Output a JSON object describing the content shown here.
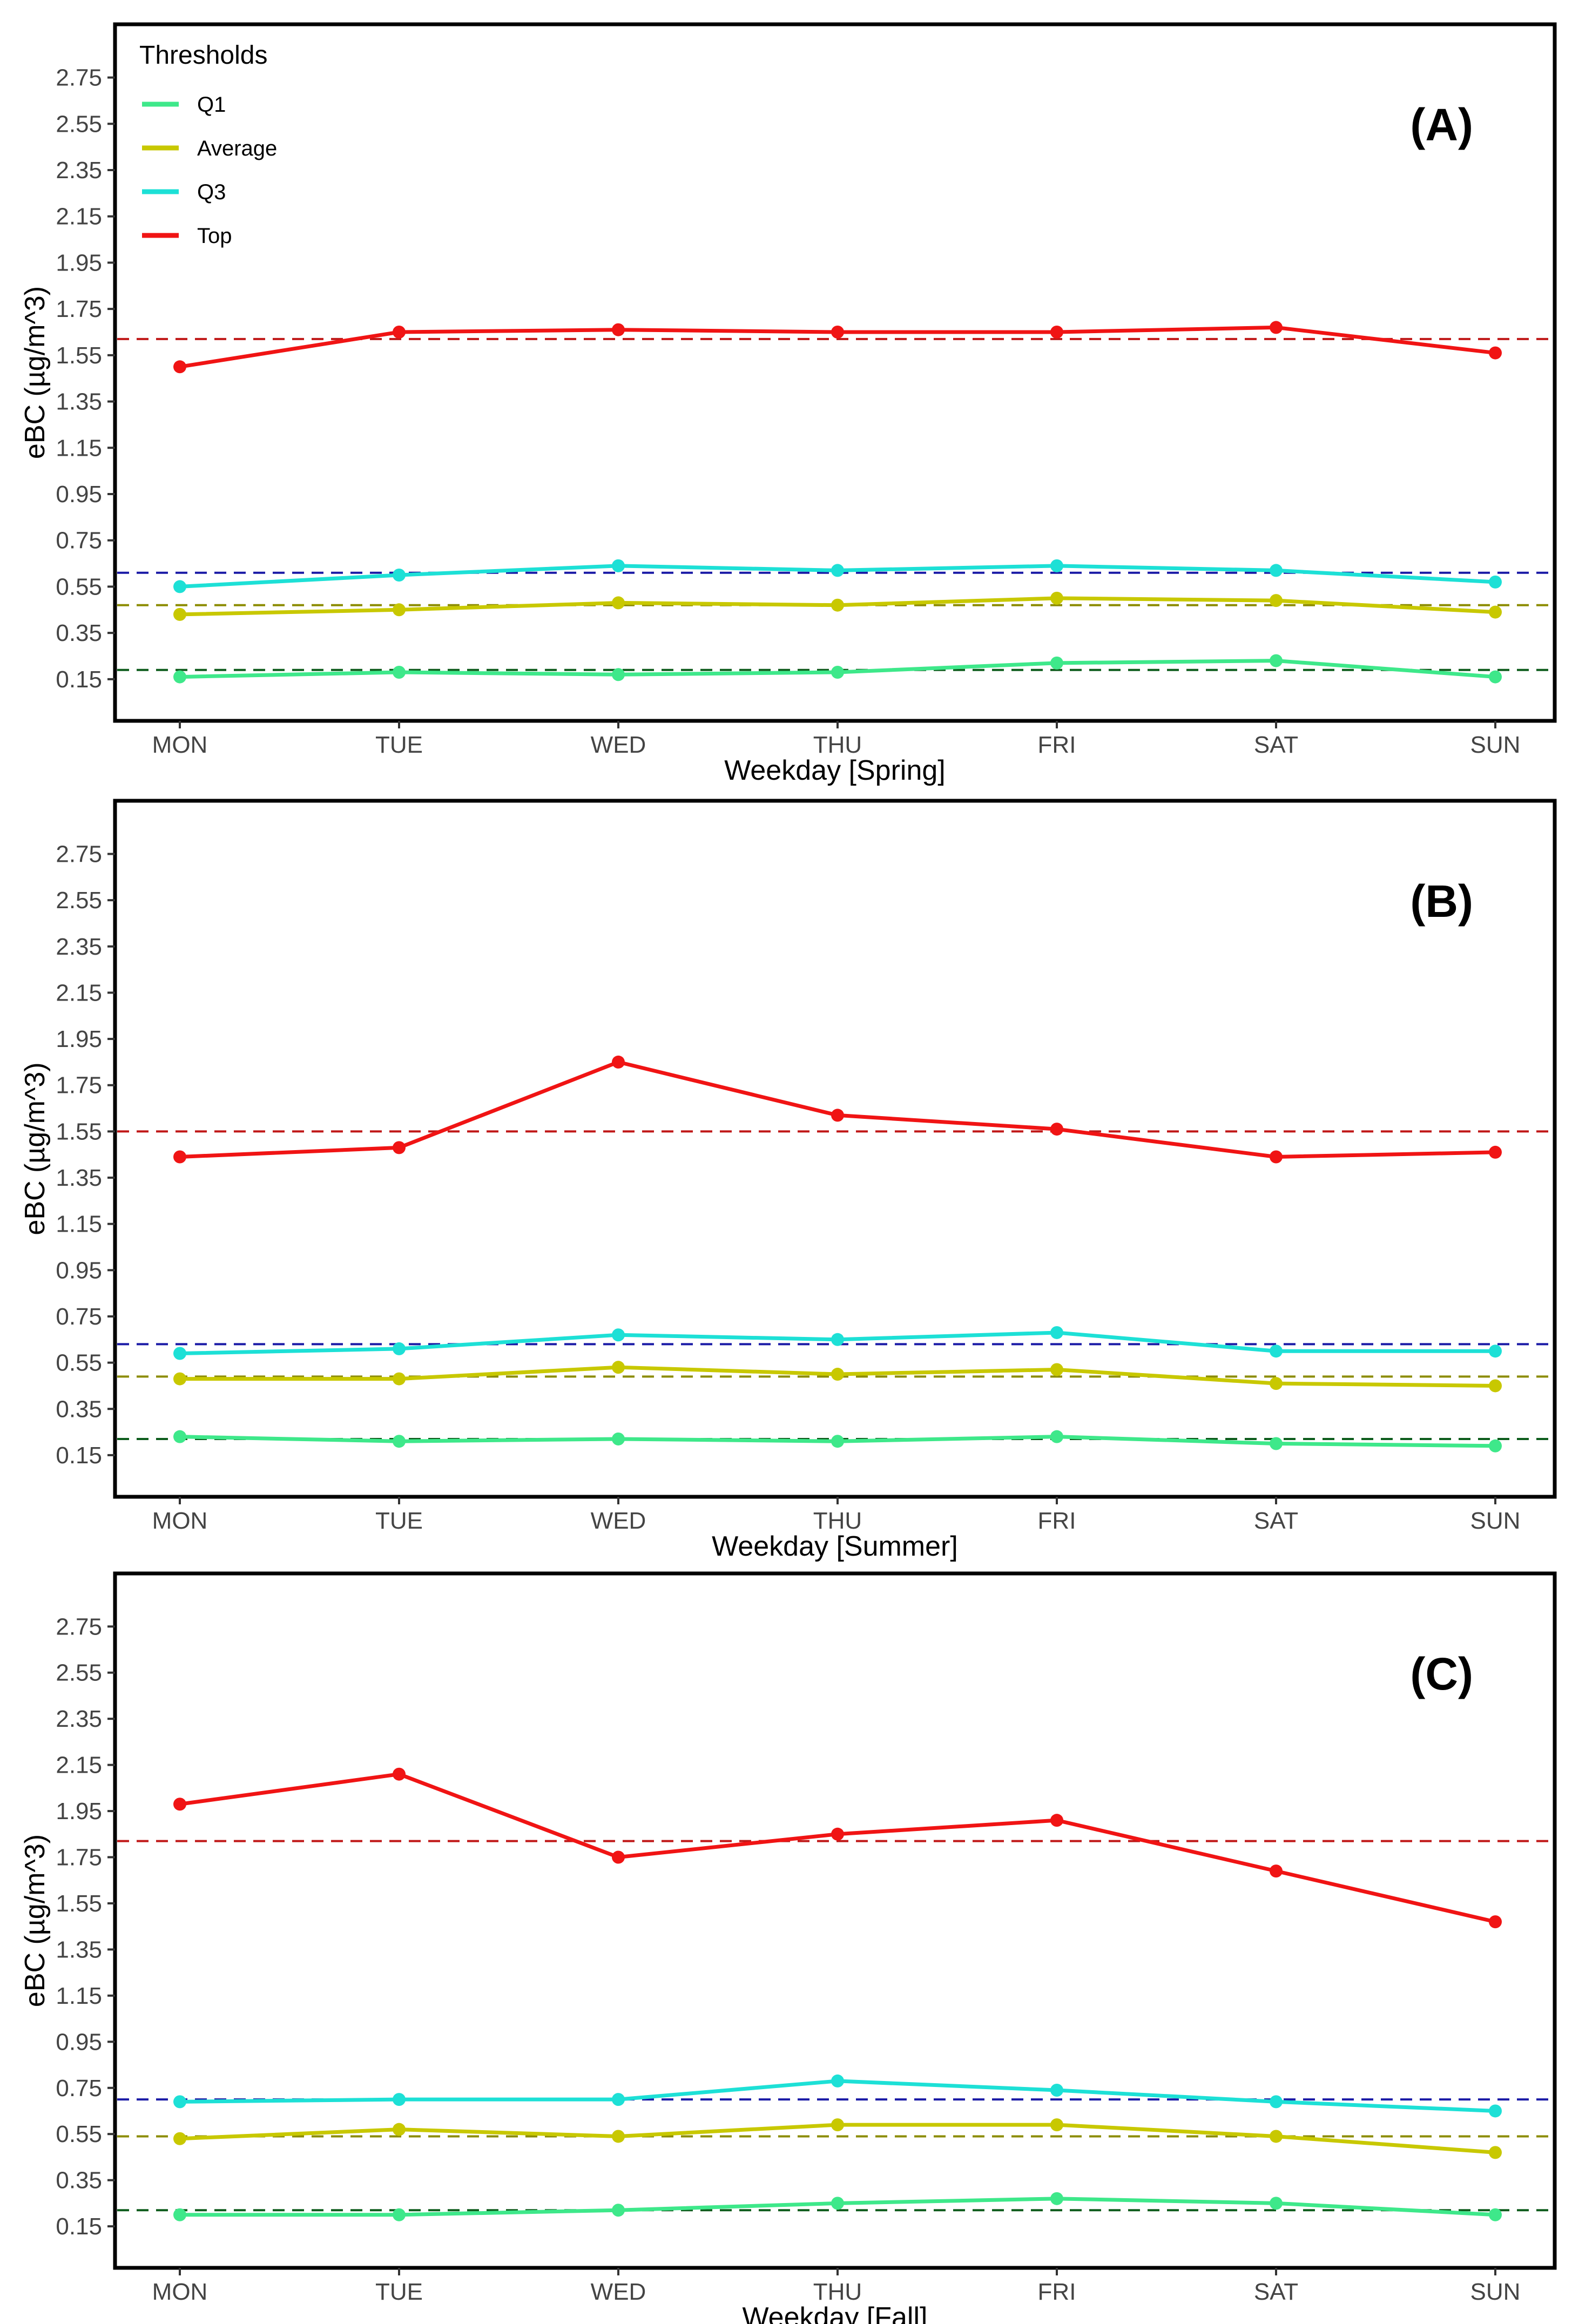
{
  "colors": {
    "Q1": "#3ee88a",
    "Average": "#c8c800",
    "Q3": "#1de0d6",
    "Top": "#f01414",
    "ref_Q1": "#0d5c1c",
    "ref_Average": "#8c8c00",
    "ref_Q3": "#1a1aa6",
    "ref_Top": "#c01818"
  },
  "legend": {
    "title": "Thresholds",
    "items": [
      "Q1",
      "Average",
      "Q3",
      "Top"
    ]
  },
  "chart_data": [
    {
      "type": "line",
      "panel_label": "(A)",
      "xlabel": "Weekday [Spring]",
      "ylabel": "eBC (µg/m^3)",
      "categories": [
        "MON",
        "TUE",
        "WED",
        "THU",
        "FRI",
        "SAT",
        "SUN"
      ],
      "yticks": [
        "0.15",
        "0.35",
        "0.55",
        "0.75",
        "0.95",
        "1.15",
        "1.35",
        "1.55",
        "1.75",
        "1.95",
        "2.15",
        "2.35",
        "2.55",
        "2.75"
      ],
      "ylim": [
        -0.03,
        2.98
      ],
      "grid": false,
      "series": [
        {
          "name": "Q1",
          "values": [
            0.16,
            0.18,
            0.17,
            0.18,
            0.22,
            0.23,
            0.16
          ]
        },
        {
          "name": "Average",
          "values": [
            0.43,
            0.45,
            0.48,
            0.47,
            0.5,
            0.49,
            0.44
          ]
        },
        {
          "name": "Q3",
          "values": [
            0.55,
            0.6,
            0.64,
            0.62,
            0.64,
            0.62,
            0.57
          ]
        },
        {
          "name": "Top",
          "values": [
            1.5,
            1.65,
            1.66,
            1.65,
            1.65,
            1.67,
            1.56
          ]
        }
      ],
      "reference_lines": [
        {
          "series": "Q1",
          "value": 0.19
        },
        {
          "series": "Average",
          "value": 0.47
        },
        {
          "series": "Q3",
          "value": 0.61
        },
        {
          "series": "Top",
          "value": 1.62
        }
      ],
      "legend_position": "top-left"
    },
    {
      "type": "line",
      "panel_label": "(B)",
      "xlabel": "Weekday [Summer]",
      "ylabel": "eBC (µg/m^3)",
      "categories": [
        "MON",
        "TUE",
        "WED",
        "THU",
        "FRI",
        "SAT",
        "SUN"
      ],
      "yticks": [
        "0.15",
        "0.35",
        "0.55",
        "0.75",
        "0.95",
        "1.15",
        "1.35",
        "1.55",
        "1.75",
        "1.95",
        "2.15",
        "2.35",
        "2.55",
        "2.75"
      ],
      "ylim": [
        -0.03,
        2.98
      ],
      "grid": false,
      "series": [
        {
          "name": "Q1",
          "values": [
            0.23,
            0.21,
            0.22,
            0.21,
            0.23,
            0.2,
            0.19
          ]
        },
        {
          "name": "Average",
          "values": [
            0.48,
            0.48,
            0.53,
            0.5,
            0.52,
            0.46,
            0.45
          ]
        },
        {
          "name": "Q3",
          "values": [
            0.59,
            0.61,
            0.67,
            0.65,
            0.68,
            0.6,
            0.6
          ]
        },
        {
          "name": "Top",
          "values": [
            1.44,
            1.48,
            1.85,
            1.62,
            1.56,
            1.44,
            1.46
          ]
        }
      ],
      "reference_lines": [
        {
          "series": "Q1",
          "value": 0.22
        },
        {
          "series": "Average",
          "value": 0.49
        },
        {
          "series": "Q3",
          "value": 0.63
        },
        {
          "series": "Top",
          "value": 1.55
        }
      ]
    },
    {
      "type": "line",
      "panel_label": "(C)",
      "xlabel": "Weekday [Fall]",
      "ylabel": "eBC (µg/m^3)",
      "categories": [
        "MON",
        "TUE",
        "WED",
        "THU",
        "FRI",
        "SAT",
        "SUN"
      ],
      "yticks": [
        "0.15",
        "0.35",
        "0.55",
        "0.75",
        "0.95",
        "1.15",
        "1.35",
        "1.55",
        "1.75",
        "1.95",
        "2.15",
        "2.35",
        "2.55",
        "2.75"
      ],
      "ylim": [
        -0.03,
        2.98
      ],
      "grid": false,
      "series": [
        {
          "name": "Q1",
          "values": [
            0.2,
            0.2,
            0.22,
            0.25,
            0.27,
            0.25,
            0.2
          ]
        },
        {
          "name": "Average",
          "values": [
            0.53,
            0.57,
            0.54,
            0.59,
            0.59,
            0.54,
            0.47
          ]
        },
        {
          "name": "Q3",
          "values": [
            0.69,
            0.7,
            0.7,
            0.78,
            0.74,
            0.69,
            0.65
          ]
        },
        {
          "name": "Top",
          "values": [
            1.98,
            2.11,
            1.75,
            1.85,
            1.91,
            1.69,
            1.47
          ]
        }
      ],
      "reference_lines": [
        {
          "series": "Q1",
          "value": 0.22
        },
        {
          "series": "Average",
          "value": 0.54
        },
        {
          "series": "Q3",
          "value": 0.7
        },
        {
          "series": "Top",
          "value": 1.82
        }
      ]
    }
  ]
}
